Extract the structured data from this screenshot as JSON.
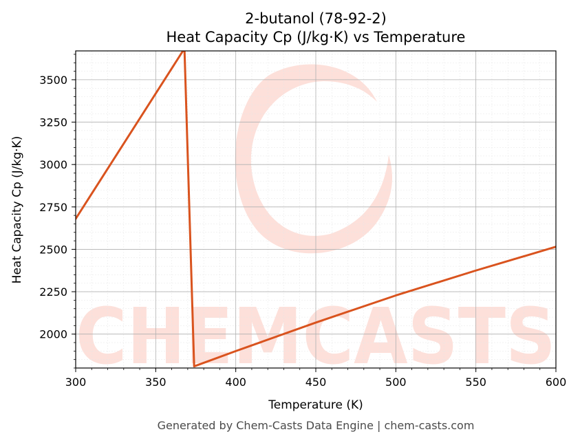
{
  "chart_data": {
    "type": "line",
    "title": [
      "2-butanol (78-92-2)",
      "Heat Capacity Cp (J/kg·K) vs Temperature"
    ],
    "xlabel": "Temperature (K)",
    "ylabel": "Heat Capacity Cp (J/kg·K)",
    "xlim": [
      300,
      600
    ],
    "ylim": [
      1800,
      3670
    ],
    "xticks": [
      300,
      350,
      400,
      450,
      500,
      550,
      600
    ],
    "yticks": [
      2000,
      2250,
      2500,
      2750,
      3000,
      3250,
      3500
    ],
    "grid": true,
    "line_color": "#d9531e",
    "series": [
      {
        "x": [
          300,
          367,
          368,
          374,
          400,
          450,
          500,
          550,
          600
        ],
        "y": [
          2680,
          3670,
          3670,
          1810,
          1900,
          2068,
          2228,
          2375,
          2515
        ]
      }
    ]
  },
  "watermark": {
    "logo_text": "CHEMCASTS",
    "color": "#fde0da"
  },
  "footer": "Generated by Chem-Casts Data Engine | chem-casts.com"
}
